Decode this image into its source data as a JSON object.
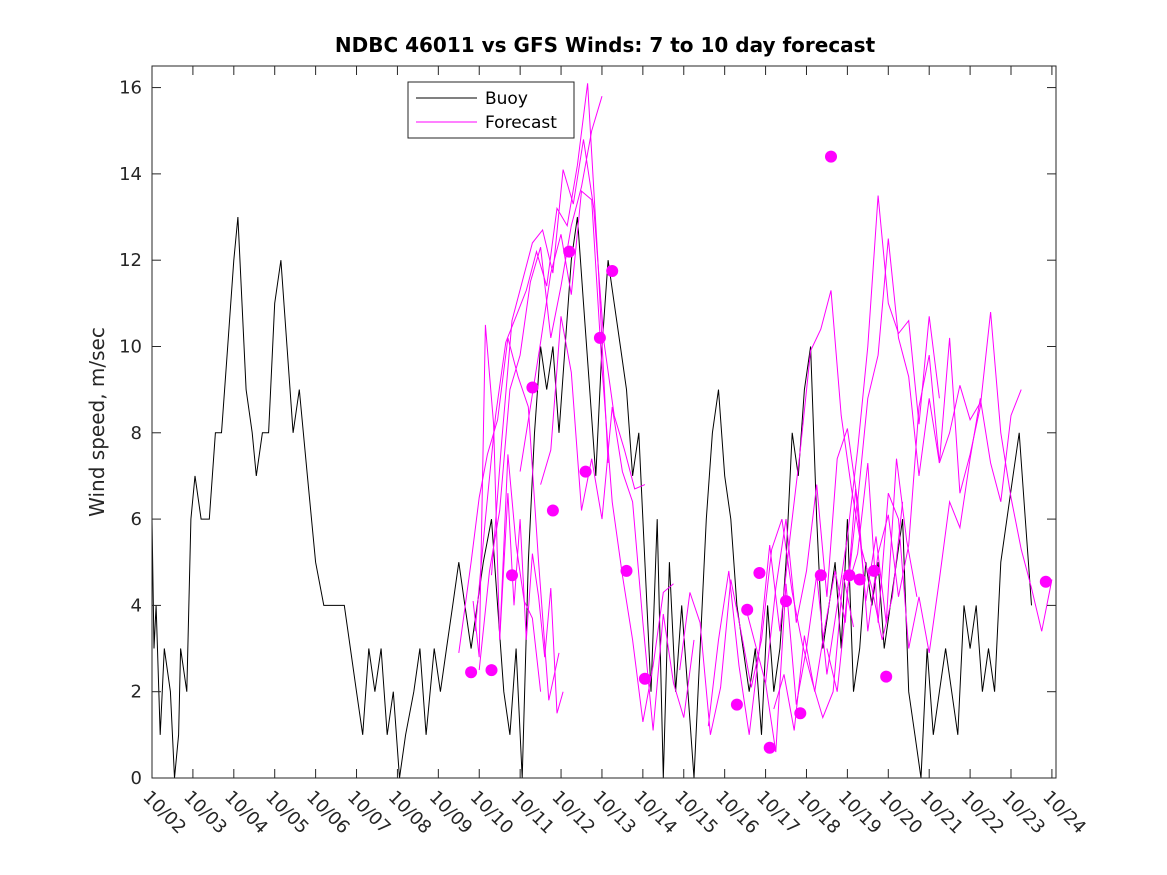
{
  "chart_data": {
    "type": "line",
    "title": "NDBC 46011 vs GFS Winds: 7 to 10 day forecast",
    "xlabel": "",
    "ylabel": "Wind speed, m/sec",
    "ylim": [
      0,
      16.5
    ],
    "yticks": [
      0,
      2,
      4,
      6,
      8,
      10,
      12,
      14,
      16
    ],
    "xlim": [
      0,
      22.1
    ],
    "xticks": [
      0,
      1,
      2,
      3,
      4,
      5,
      6,
      7,
      8,
      9,
      10,
      11,
      12,
      13,
      14,
      15,
      16,
      17,
      18,
      19,
      20,
      21,
      22
    ],
    "xticklabels": [
      "10/02",
      "10/03",
      "10/04",
      "10/05",
      "10/06",
      "10/07",
      "10/08",
      "10/09",
      "10/10",
      "10/11",
      "10/12",
      "10/13",
      "10/14",
      "10/15",
      "10/16",
      "10/17",
      "10/18",
      "10/19",
      "10/20",
      "10/21",
      "10/22",
      "10/23",
      "10/24"
    ],
    "legend": {
      "location": "top-left",
      "entries": [
        "Buoy",
        "Forecast"
      ]
    },
    "colors": {
      "buoy": "#000000",
      "forecast": "#ff00ff",
      "axis": "#262626"
    },
    "buoy": {
      "name": "Buoy",
      "x": [
        0,
        0.05,
        0.1,
        0.2,
        0.3,
        0.45,
        0.55,
        0.65,
        0.7,
        0.85,
        0.95,
        1.05,
        1.2,
        1.4,
        1.55,
        1.7,
        1.85,
        2.0,
        2.1,
        2.2,
        2.3,
        2.45,
        2.55,
        2.7,
        2.85,
        3.0,
        3.15,
        3.3,
        3.45,
        3.6,
        3.8,
        4.0,
        4.2,
        4.45,
        4.7,
        4.85,
        5.0,
        5.15,
        5.3,
        5.45,
        5.6,
        5.75,
        5.9,
        6.05,
        6.2,
        6.4,
        6.55,
        6.7,
        6.9,
        7.05,
        7.2,
        7.35,
        7.5,
        7.65,
        7.8,
        7.95,
        8.1,
        8.3,
        8.45,
        8.6,
        8.75,
        8.9,
        9.05,
        9.2,
        9.35,
        9.5,
        9.65,
        9.8,
        9.95,
        10.1,
        10.25,
        10.4,
        10.55,
        10.7,
        10.85,
        11.0,
        11.15,
        11.3,
        11.45,
        11.6,
        11.75,
        11.9,
        12.05,
        12.2,
        12.35,
        12.5,
        12.65,
        12.8,
        12.95,
        13.1,
        13.25,
        13.4,
        13.55,
        13.7,
        13.85,
        14.0,
        14.15,
        14.3,
        14.45,
        14.6,
        14.75,
        14.9,
        15.05,
        15.2,
        15.35,
        15.5,
        15.65,
        15.8,
        15.95,
        16.1,
        16.25,
        16.4,
        16.55,
        16.7,
        16.85,
        17.0,
        17.15,
        17.3,
        17.45,
        17.6,
        17.75,
        17.9,
        18.05,
        18.2,
        18.35,
        18.5,
        18.65,
        18.8,
        18.95,
        19.1,
        19.25,
        19.4,
        19.55,
        19.7,
        19.85,
        20.0,
        20.15,
        20.3,
        20.45,
        20.6,
        20.75,
        20.9,
        21.05,
        21.2,
        21.35,
        21.5
      ],
      "values": [
        6,
        3,
        4,
        1,
        3,
        2,
        0,
        1,
        3,
        2,
        6,
        7,
        6,
        6,
        8,
        8,
        10,
        12,
        13,
        11,
        9,
        8,
        7,
        8,
        8,
        11,
        12,
        10,
        8,
        9,
        7,
        5,
        4,
        4,
        4,
        3,
        2,
        1,
        3,
        2,
        3,
        1,
        2,
        0,
        1,
        2,
        3,
        1,
        3,
        2,
        3,
        4,
        5,
        4,
        3,
        4,
        5,
        6,
        4,
        2,
        1,
        3,
        0,
        5,
        8,
        10,
        9,
        10,
        8,
        10,
        12,
        13,
        11,
        9,
        7,
        10,
        12,
        11,
        10,
        9,
        7,
        8,
        5,
        2,
        6,
        0,
        5,
        2,
        4,
        2,
        0,
        3,
        6,
        8,
        9,
        7,
        6,
        4,
        3,
        2,
        3,
        1,
        4,
        2,
        3,
        5,
        8,
        7,
        9,
        10,
        6,
        3,
        4,
        5,
        3,
        6,
        2,
        3,
        5,
        4,
        5,
        3,
        4,
        5,
        6,
        2,
        1,
        0,
        3,
        1,
        2,
        3,
        2,
        1,
        4,
        3,
        4,
        2,
        3,
        2,
        5,
        6,
        7,
        8,
        6,
        4
      ]
    },
    "forecasts": [
      {
        "name": "Forecast",
        "x": [
          7.5,
          7.8,
          8.0,
          8.2,
          8.45,
          8.7,
          8.95,
          9.2,
          9.45,
          9.7,
          9.95
        ],
        "values": [
          2.9,
          5.0,
          6.5,
          7.5,
          8.3,
          10.2,
          9.3,
          8.6,
          5.0,
          1.8,
          2.9
        ]
      },
      {
        "name": "Forecast",
        "x": [
          8.0,
          8.25,
          8.5,
          8.75,
          9.0,
          9.25,
          9.5,
          9.75,
          10.0,
          10.25,
          10.5,
          10.75,
          11.0
        ],
        "values": [
          2.5,
          4.8,
          6.2,
          9.0,
          9.8,
          11.5,
          12.3,
          10.2,
          11.4,
          12.8,
          13.7,
          15.0,
          15.8
        ]
      },
      {
        "name": "Forecast",
        "x": [
          7.9,
          8.15,
          8.4,
          8.65,
          8.9,
          9.15,
          9.4,
          9.65,
          9.9,
          10.15,
          10.4,
          10.65,
          10.9,
          11.15
        ],
        "values": [
          3.4,
          6.0,
          8.4,
          10.1,
          10.7,
          11.3,
          12.2,
          11.4,
          13.2,
          12.8,
          14.2,
          16.1,
          12.0,
          7.3
        ]
      },
      {
        "name": "Forecast",
        "x": [
          8.3,
          8.55,
          8.8,
          9.05,
          9.3,
          9.55,
          9.8,
          10.05,
          10.3,
          10.55,
          10.8,
          11.05,
          11.3,
          11.55,
          11.8,
          12.05
        ],
        "values": [
          4.7,
          7.8,
          10.6,
          11.5,
          12.4,
          12.7,
          11.7,
          14.1,
          13.3,
          14.8,
          13.2,
          10.1,
          8.4,
          7.6,
          6.7,
          6.8
        ]
      },
      {
        "name": "Forecast",
        "x": [
          9.0,
          9.25,
          9.5,
          9.75,
          10.0,
          10.25,
          10.5,
          10.75,
          11.0,
          11.25,
          11.5,
          11.75,
          12.0,
          12.25,
          12.5,
          12.75
        ],
        "values": [
          7.1,
          8.6,
          10.1,
          11.7,
          12.6,
          11.2,
          13.6,
          13.4,
          9.5,
          6.4,
          4.7,
          3.2,
          1.3,
          2.6,
          4.3,
          4.5
        ]
      },
      {
        "name": "Forecast",
        "x": [
          8.5,
          8.7,
          8.9,
          9.1,
          9.3,
          9.5
        ],
        "values": [
          3.2,
          7.5,
          5.4,
          4.1,
          3.7,
          2.0
        ]
      },
      {
        "name": "Forecast",
        "x": [
          7.85,
          8.0,
          8.15,
          8.35,
          8.5,
          8.7,
          8.85,
          9.0,
          9.15,
          9.3,
          9.45,
          9.6,
          9.75,
          9.9,
          10.05
        ],
        "values": [
          4.1,
          2.8,
          10.5,
          8.2,
          3.2,
          6.6,
          4.0,
          6.0,
          3.2,
          5.2,
          4.2,
          2.8,
          4.4,
          1.5,
          2.0
        ]
      },
      {
        "name": "Forecast",
        "x": [
          9.5,
          9.75,
          10.0,
          10.25,
          10.5,
          10.75,
          11.0,
          11.25,
          11.5,
          11.75,
          12.0,
          12.25,
          12.5,
          12.75,
          13.0,
          13.25
        ],
        "values": [
          6.8,
          7.6,
          10.7,
          9.4,
          6.2,
          7.4,
          6.0,
          8.6,
          7.1,
          6.4,
          3.6,
          1.1,
          3.8,
          2.2,
          1.4,
          3.2
        ]
      },
      {
        "name": "Forecast",
        "x": [
          12.9,
          13.15,
          13.4,
          13.65,
          13.9,
          14.15,
          14.4,
          14.65,
          14.9,
          15.15,
          15.4,
          15.65,
          15.9,
          16.15,
          16.4,
          16.65,
          16.9,
          17.15
        ],
        "values": [
          2.5,
          4.3,
          3.6,
          1.0,
          2.1,
          4.6,
          3.4,
          2.1,
          3.2,
          5.3,
          6.0,
          4.3,
          3.1,
          2.2,
          1.4,
          2.0,
          4.7,
          3.5
        ]
      },
      {
        "name": "Forecast",
        "x": [
          13.6,
          13.85,
          14.1,
          14.35,
          14.6,
          14.85,
          15.1,
          15.35,
          15.6,
          15.85,
          16.1,
          16.35,
          16.6,
          16.85,
          17.1,
          17.35,
          17.6,
          17.85,
          18.1,
          18.35
        ],
        "values": [
          1.2,
          3.2,
          4.8,
          2.6,
          1.0,
          3.0,
          5.4,
          3.4,
          5.6,
          7.6,
          9.9,
          10.4,
          11.3,
          8.4,
          6.7,
          5.3,
          4.4,
          3.2,
          4.2,
          6.4
        ]
      },
      {
        "name": "Forecast",
        "x": [
          14.5,
          14.75,
          15.0,
          15.25,
          15.5,
          15.75,
          16.0,
          16.25,
          16.5,
          16.75,
          17.0,
          17.25,
          17.5,
          17.75,
          18.0,
          18.25,
          18.5,
          18.75,
          19.0,
          19.25
        ],
        "values": [
          4.0,
          3.1,
          2.2,
          0.6,
          4.5,
          1.7,
          3.0,
          4.7,
          2.4,
          4.0,
          5.6,
          7.6,
          10.0,
          13.5,
          11.0,
          10.3,
          10.6,
          8.2,
          10.7,
          8.8
        ]
      },
      {
        "name": "Forecast",
        "x": [
          15.0,
          15.25,
          15.5,
          15.75,
          16.0,
          16.25,
          16.5,
          16.75,
          17.0,
          17.25,
          17.5,
          17.75,
          18.0,
          18.25,
          18.5,
          18.75,
          19.0,
          19.25,
          19.5,
          19.75,
          20.0,
          20.25
        ],
        "values": [
          2.2,
          4.4,
          6.0,
          3.6,
          4.8,
          6.8,
          4.2,
          7.4,
          8.1,
          6.4,
          8.8,
          9.8,
          12.5,
          10.2,
          9.3,
          7.0,
          8.8,
          7.3,
          8.0,
          9.1,
          8.3,
          8.7
        ]
      },
      {
        "name": "Forecast",
        "x": [
          16.5,
          16.75,
          17.0,
          17.25,
          17.5,
          17.75,
          18.0,
          18.25,
          18.5,
          18.75,
          19.0,
          19.25,
          19.5,
          19.75,
          20.0,
          20.25,
          20.5,
          20.75,
          21.0,
          21.25,
          21.5,
          21.75,
          22.0
        ],
        "values": [
          3.0,
          2.0,
          4.3,
          6.5,
          3.4,
          5.2,
          6.1,
          4.2,
          5.4,
          8.6,
          9.8,
          7.3,
          10.2,
          6.6,
          7.5,
          8.6,
          10.8,
          8.0,
          6.5,
          5.3,
          4.4,
          3.4,
          4.6
        ]
      },
      {
        "name": "Forecast",
        "x": [
          15.2,
          15.45,
          15.7,
          15.95,
          16.2,
          16.45,
          16.7,
          16.95,
          17.2,
          17.45,
          17.7,
          17.95,
          18.2,
          18.45,
          18.7
        ],
        "values": [
          1.6,
          2.4,
          1.1,
          3.3,
          2.0,
          3.5,
          4.8,
          3.6,
          6.7,
          4.1,
          5.6,
          3.6,
          7.4,
          5.5,
          4.2
        ]
      },
      {
        "name": "Forecast",
        "x": [
          17.0,
          17.25,
          17.5,
          17.75,
          18.0,
          18.25,
          18.5,
          18.75,
          19.0,
          19.25,
          19.5,
          19.75,
          20.0,
          20.25,
          20.5,
          20.75,
          21.0,
          21.25
        ],
        "values": [
          4.4,
          5.2,
          7.3,
          3.6,
          6.6,
          6.0,
          3.0,
          4.2,
          2.9,
          4.6,
          6.4,
          5.8,
          7.4,
          8.8,
          7.3,
          6.4,
          8.4,
          9.0
        ]
      }
    ],
    "markers": {
      "name": "Forecast",
      "x": [
        7.8,
        8.3,
        8.8,
        9.3,
        9.8,
        10.2,
        10.6,
        10.95,
        11.25,
        11.6,
        12.05,
        14.3,
        14.55,
        14.85,
        15.1,
        15.5,
        15.85,
        16.35,
        16.6,
        17.05,
        17.3,
        17.65,
        17.95,
        21.85
      ],
      "values": [
        2.45,
        2.5,
        4.7,
        9.05,
        6.2,
        12.2,
        7.1,
        10.2,
        11.75,
        4.8,
        2.3,
        1.7,
        3.9,
        4.75,
        0.7,
        4.1,
        1.5,
        4.7,
        14.4,
        4.7,
        4.6,
        4.8,
        2.35,
        4.55
      ]
    }
  }
}
